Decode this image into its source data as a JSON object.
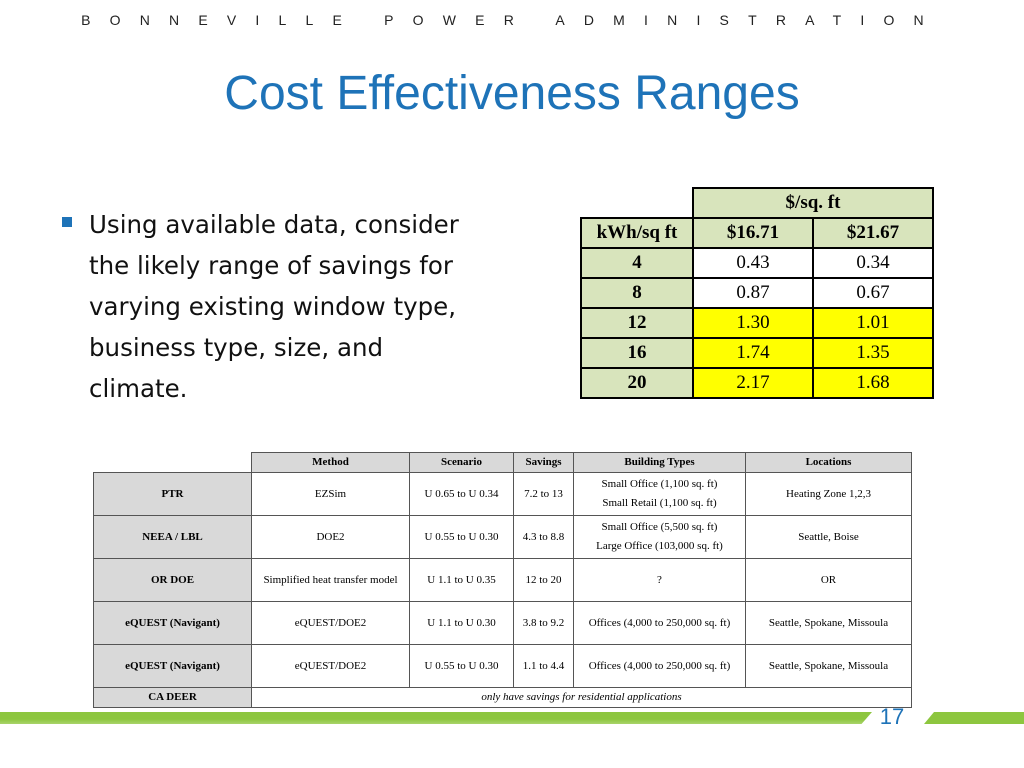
{
  "header": {
    "org": "BONNEVILLE POWER ADMINISTRATION"
  },
  "slide": {
    "title": "Cost Effectiveness Ranges",
    "bullet": "Using available data, consider the likely range of savings for varying existing window type, business type, size, and climate.",
    "page_number": "17"
  },
  "cost_table": {
    "group_header": "$/sq. ft",
    "row_header": "kWh/sq ft",
    "columns": [
      "$16.71",
      "$21.67"
    ],
    "rows": [
      {
        "kwh": "4",
        "values": [
          "0.43",
          "0.34"
        ]
      },
      {
        "kwh": "8",
        "values": [
          "0.87",
          "0.67"
        ]
      },
      {
        "kwh": "12",
        "values": [
          "1.30",
          "1.01"
        ]
      },
      {
        "kwh": "16",
        "values": [
          "1.74",
          "1.35"
        ]
      },
      {
        "kwh": "20",
        "values": [
          "2.17",
          "1.68"
        ]
      }
    ]
  },
  "studies_table": {
    "headers": [
      "Method",
      "Scenario",
      "Savings",
      "Building Types",
      "Locations"
    ],
    "rows": [
      {
        "label": "PTR",
        "method": "EZSim",
        "scenario": "U 0.65 to U 0.34",
        "savings": "7.2 to 13",
        "building_types": "Small Office (1,100 sq. ft)\nSmall Retail (1,100 sq. ft)",
        "locations": "Heating Zone 1,2,3"
      },
      {
        "label": "NEEA / LBL",
        "method": "DOE2",
        "scenario": "U 0.55 to U 0.30",
        "savings": "4.3 to 8.8",
        "building_types": "Small Office (5,500 sq. ft)\nLarge Office (103,000 sq. ft)",
        "locations": "Seattle, Boise"
      },
      {
        "label": "OR DOE",
        "method": "Simplified heat transfer model",
        "scenario": "U 1.1 to U 0.35",
        "savings": "12 to 20",
        "building_types": "?",
        "locations": "OR"
      },
      {
        "label": "eQUEST (Navigant)",
        "method": "eQUEST/DOE2",
        "scenario": "U 1.1 to U 0.30",
        "savings": "3.8 to 9.2",
        "building_types": "Offices (4,000 to 250,000 sq. ft)",
        "locations": "Seattle, Spokane, Missoula"
      },
      {
        "label": "eQUEST (Navigant)",
        "method": "eQUEST/DOE2",
        "scenario": "U 0.55 to U 0.30",
        "savings": "1.1 to 4.4",
        "building_types": "Offices (4,000 to 250,000 sq. ft)",
        "locations": "Seattle, Spokane, Missoula"
      }
    ],
    "footer_row": {
      "label": "CA DEER",
      "note": "only have savings for residential applications"
    }
  },
  "colors": {
    "title_blue": "#1e73b8",
    "table_green": "#d8e4bc",
    "highlight_yellow": "#ffff00",
    "header_gray": "#d9d9d9",
    "bar_green": "#8dc63f"
  }
}
